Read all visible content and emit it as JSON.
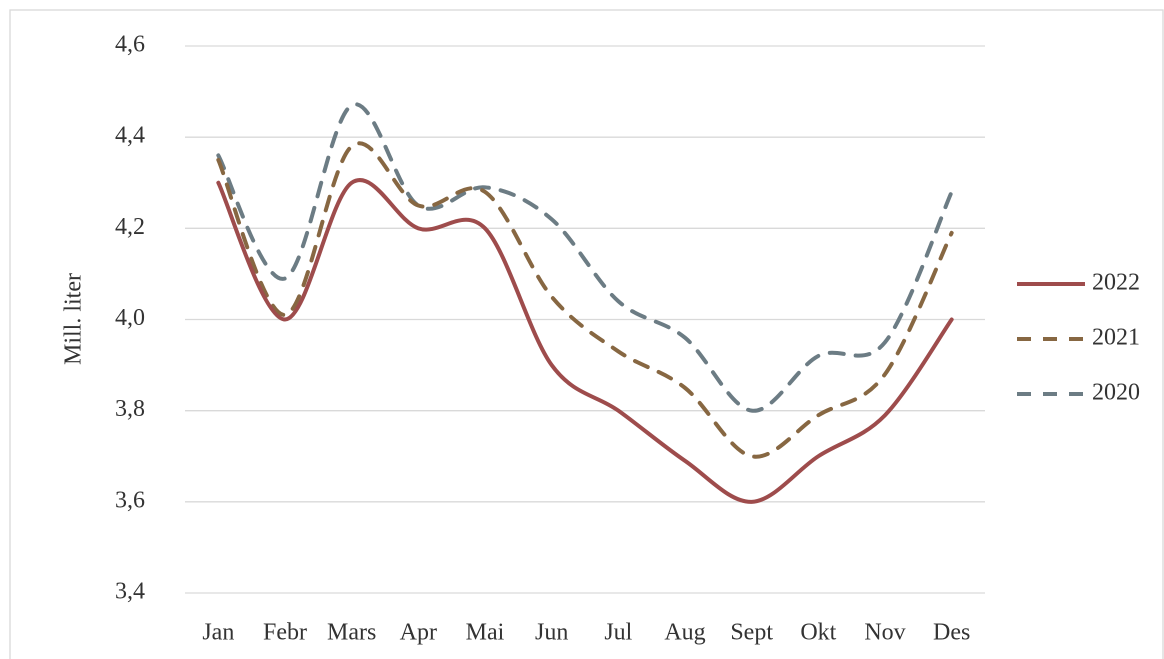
{
  "chart_data": {
    "type": "line",
    "y_label": "Mill. liter",
    "categories": [
      "Jan",
      "Febr",
      "Mars",
      "Apr",
      "Mai",
      "Jun",
      "Jul",
      "Aug",
      "Sept",
      "Okt",
      "Nov",
      "Des"
    ],
    "series": [
      {
        "name": "2022",
        "color": "#9e4c4c",
        "dashed": false,
        "values": [
          4.3,
          4.0,
          4.3,
          4.2,
          4.2,
          3.9,
          3.8,
          3.69,
          3.6,
          3.7,
          3.79,
          4.0
        ]
      },
      {
        "name": "2021",
        "color": "#876742",
        "dashed": true,
        "values": [
          4.35,
          4.01,
          4.38,
          4.25,
          4.28,
          4.05,
          3.93,
          3.85,
          3.7,
          3.79,
          3.88,
          4.19
        ]
      },
      {
        "name": "2020",
        "color": "#6c7c84",
        "dashed": true,
        "values": [
          4.36,
          4.09,
          4.47,
          4.25,
          4.29,
          4.22,
          4.04,
          3.96,
          3.8,
          3.92,
          3.95,
          4.28
        ]
      }
    ],
    "ylim": [
      3.4,
      4.6
    ],
    "yticks": [
      {
        "value": 3.4,
        "label": "3,4"
      },
      {
        "value": 3.6,
        "label": "3,6"
      },
      {
        "value": 3.8,
        "label": "3,8"
      },
      {
        "value": 4.0,
        "label": "4,0"
      },
      {
        "value": 4.2,
        "label": "4,2"
      },
      {
        "value": 4.4,
        "label": "4,4"
      },
      {
        "value": 4.6,
        "label": "4,6"
      }
    ],
    "grid": true,
    "legend": "right"
  }
}
